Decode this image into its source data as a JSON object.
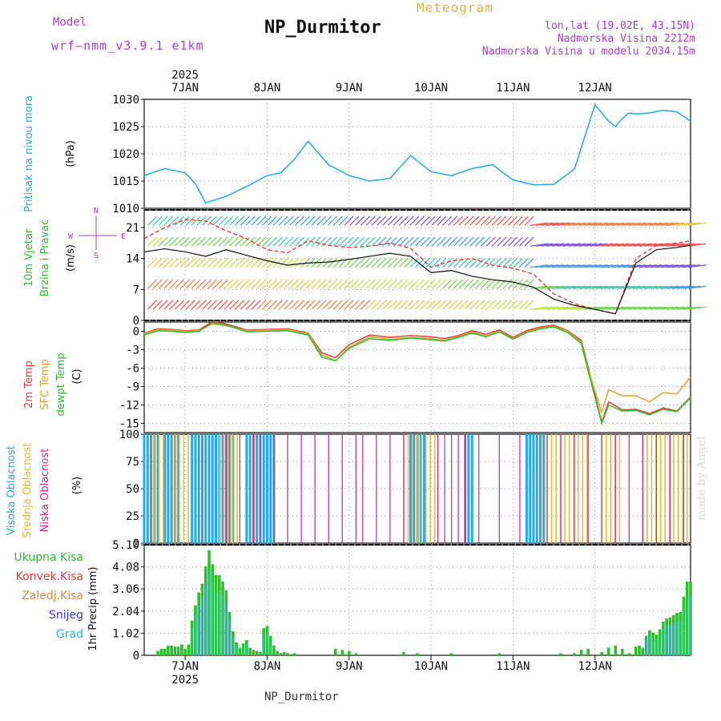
{
  "header": {
    "model_label": "Model",
    "model_version": "wrf—nmm_v3.9.1  e1km",
    "meteogram_label": "Meteogram",
    "station": "NP_Durmitor",
    "lonlat": "lon,lat (19.02E, 43.15N)",
    "elevation": "Nadmorska Visina 2212m",
    "model_elevation": "Nadmorska Visina u modelu 2034.15m"
  },
  "footer": {
    "station": "NP_Durmitor"
  },
  "watermark": "made by Angel",
  "colors": {
    "pressure": "#28a8e8",
    "temp2m": "#e83c3c",
    "sfc_temp": "#e8a030",
    "dewpoint": "#2cc02c",
    "wind_speed": "#111111",
    "cloud_high": "#28a8e8",
    "cloud_mid": "#e8b830",
    "cloud_low": "#c82890",
    "precip_total": "#2cc02c",
    "precip_conv": "#e83c3c",
    "precip_frz": "#e8843c",
    "precip_snow": "#3c3ce8",
    "precip_hail": "#28b8c8",
    "axis": "#111111",
    "grid": "#9a9a9a"
  },
  "chart_data": [
    {
      "type": "line",
      "id": "pressure",
      "ylabel": [
        "Pritisak na nivou mora",
        "(hPa)"
      ],
      "ylim": [
        1010,
        1030
      ],
      "yticks": [
        1010,
        1015,
        1020,
        1025,
        1030
      ],
      "x_hours": [
        0,
        6,
        12,
        15,
        18,
        24,
        30,
        36,
        40,
        44,
        48,
        54,
        60,
        66,
        72,
        78,
        84,
        90,
        96,
        102,
        108,
        114,
        120,
        126,
        132,
        136,
        138,
        140,
        142,
        144,
        148,
        152,
        156,
        160
      ],
      "series": [
        {
          "values": [
            1016,
            1017.3,
            1016.5,
            1014.5,
            1011,
            1012.2,
            1014,
            1016,
            1016.5,
            1019,
            1022.3,
            1018,
            1016,
            1015,
            1015.5,
            1019.7,
            1016.7,
            1016,
            1017.3,
            1018,
            1015.2,
            1014.3,
            1014.4,
            1017.2,
            1029,
            1026,
            1025,
            1026.5,
            1027.5,
            1027.3,
            1027.5,
            1028,
            1027.7,
            1026
          ]
        }
      ],
      "grid": true
    },
    {
      "type": "line",
      "id": "wind",
      "ylabel": [
        "10m Vjetar",
        "Brzina i Pravac",
        "(m/s)"
      ],
      "compass": [
        "N",
        "S",
        "W",
        "E"
      ],
      "ylim": [
        0,
        25
      ],
      "yticks": [
        0,
        7,
        14,
        21
      ],
      "x_hours": [
        0,
        6,
        12,
        18,
        24,
        30,
        36,
        42,
        48,
        54,
        60,
        66,
        72,
        78,
        84,
        90,
        96,
        102,
        108,
        114,
        120,
        126,
        132,
        138,
        144,
        150,
        156,
        160
      ],
      "series": [
        {
          "name": "speed",
          "values": [
            15.5,
            16.2,
            15.5,
            14.5,
            16,
            14.7,
            13.5,
            12.5,
            13,
            13.2,
            13.8,
            14.5,
            15.2,
            14.5,
            10.8,
            11.3,
            10,
            9.2,
            8.7,
            7.5,
            4.8,
            3.4,
            2.5,
            1.5,
            13,
            16,
            16.5,
            17
          ]
        },
        {
          "name": "gust",
          "values": [
            18.5,
            21,
            22.8,
            22.5,
            20.3,
            18.5,
            16,
            15.3,
            18,
            17,
            16.5,
            16.8,
            17.5,
            16.3,
            12,
            13.5,
            14,
            12.5,
            11.8,
            10.5,
            6,
            3.8,
            2.5,
            1.5,
            14,
            17,
            17.5,
            18
          ]
        }
      ],
      "grid": true
    },
    {
      "type": "line",
      "id": "temperature",
      "ylabel": [
        "2m Temp",
        "SFC Temp",
        "dewpt Temp",
        "(C)"
      ],
      "ylim": [
        -16.5,
        1.5
      ],
      "yticks": [
        -15,
        -12,
        -9,
        -6,
        -3,
        0
      ],
      "x_hours": [
        0,
        4,
        8,
        12,
        16,
        20,
        24,
        30,
        36,
        42,
        48,
        52,
        56,
        60,
        66,
        72,
        78,
        84,
        88,
        92,
        96,
        100,
        104,
        108,
        112,
        116,
        120,
        124,
        128,
        130,
        134,
        136,
        140,
        144,
        148,
        152,
        156,
        160
      ],
      "series": [
        {
          "name": "2m Temp",
          "values": [
            -0.3,
            0.4,
            0.3,
            0.1,
            0.2,
            1.6,
            1.2,
            0.2,
            0.3,
            0.4,
            -0.3,
            -3.5,
            -4.3,
            -2.2,
            -0.6,
            -1,
            -0.7,
            -0.9,
            -1.2,
            -0.7,
            0.1,
            -0.5,
            0.2,
            -1,
            0.1,
            0.7,
            1,
            0.1,
            -1.5,
            -5.8,
            -14.8,
            -11.5,
            -12.8,
            -12.7,
            -13.4,
            -12.5,
            -13,
            -10.7
          ]
        },
        {
          "name": "SFC Temp",
          "values": [
            -0.4,
            0.3,
            0.2,
            0,
            0.1,
            1.2,
            0.9,
            0.1,
            0.2,
            0.3,
            -0.4,
            -3.8,
            -4.8,
            -2.6,
            -0.9,
            -1.3,
            -1,
            -1.2,
            -1.5,
            -0.9,
            -0.1,
            -0.8,
            0,
            -1.2,
            -0.1,
            0.5,
            0.8,
            0,
            -1.8,
            -6.2,
            -13.2,
            -9.5,
            -10.5,
            -10.5,
            -11.5,
            -10,
            -10.2,
            -7.5
          ]
        },
        {
          "name": "dewpt Temp",
          "values": [
            -0.6,
            0.1,
            0,
            -0.2,
            0,
            1.4,
            1,
            -0.1,
            0,
            0.1,
            -0.6,
            -4.2,
            -4.8,
            -2.8,
            -1.2,
            -1.5,
            -1.1,
            -1.4,
            -1.6,
            -1,
            -0.3,
            -0.9,
            -0.1,
            -1.3,
            -0.2,
            0.4,
            0.7,
            -0.2,
            -2,
            -6.5,
            -15,
            -12,
            -13,
            -12.9,
            -13.6,
            -12.7,
            -13.1,
            -10.8
          ]
        }
      ],
      "grid": true
    },
    {
      "type": "bar",
      "id": "cloud",
      "ylabel": [
        "Visoka Oblacnost",
        "Srednja Oblacnost",
        "Niska Oblacnost",
        "(%)"
      ],
      "ylim": [
        0,
        100
      ],
      "yticks": [
        0,
        25,
        50,
        75,
        100
      ],
      "series": [
        {
          "name": "Visoka Oblacnost",
          "ranges": [
            [
              0,
              4
            ],
            [
              6,
              10
            ],
            [
              14,
              26
            ],
            [
              30,
              38
            ],
            [
              78,
              82
            ],
            [
              94,
              96
            ],
            [
              112,
              117
            ]
          ],
          "value": 100
        },
        {
          "name": "Srednja Oblacnost",
          "ranges": [
            [
              3,
              6
            ],
            [
              9,
              13
            ],
            [
              22,
              28
            ],
            [
              76,
              86
            ],
            [
              118,
              130
            ],
            [
              134,
              140
            ],
            [
              146,
              160
            ]
          ],
          "value": 100
        },
        {
          "name": "Niska Oblacnost",
          "hours": [
            24,
            28,
            32,
            34,
            38,
            42,
            46,
            50,
            54,
            58,
            62,
            64,
            68,
            72,
            76,
            86,
            88,
            90,
            92,
            94,
            98,
            104,
            110,
            118,
            122,
            126,
            130,
            134,
            138,
            142,
            146,
            150,
            154,
            158
          ],
          "value": 100
        }
      ],
      "grid": true
    },
    {
      "type": "bar",
      "id": "precip",
      "ylabel": [
        "1hr Precip",
        "(mm)"
      ],
      "legend": [
        "Ukupna Kisa",
        "Konvek.Kisa",
        "Zaledj.Kisa",
        "Snijeg",
        "Grad"
      ],
      "ylim": [
        0,
        5.1
      ],
      "yticks": [
        0,
        1.02,
        2.04,
        3.06,
        4.08,
        5.1
      ],
      "x_hours": [
        4,
        5,
        6,
        7,
        8,
        9,
        10,
        11,
        12,
        13,
        14,
        15,
        16,
        17,
        18,
        19,
        20,
        21,
        22,
        23,
        24,
        25,
        26,
        27,
        28,
        29,
        30,
        31,
        32,
        33,
        34,
        35,
        36,
        37,
        38,
        39,
        40,
        41,
        42,
        43,
        44,
        56,
        58,
        60,
        62,
        76,
        80,
        90,
        104,
        122,
        126,
        128,
        130,
        134,
        136,
        138,
        140,
        142,
        144,
        145,
        146,
        147,
        148,
        149,
        150,
        151,
        152,
        153,
        154,
        155,
        156,
        157,
        158,
        159,
        160
      ],
      "values": [
        0.2,
        0.3,
        0.3,
        0.45,
        0.45,
        0.4,
        0.4,
        0.5,
        0.3,
        0.5,
        1.6,
        2.3,
        2.9,
        3.3,
        4.1,
        4.85,
        4.2,
        3.7,
        3.7,
        3.4,
        3.0,
        2.0,
        1.1,
        0.6,
        0.35,
        0.55,
        0.7,
        0.35,
        0.25,
        0.2,
        0.15,
        1.25,
        1.35,
        0.9,
        0.45,
        0.2,
        0.1,
        0.15,
        0.1,
        0.05,
        0.1,
        0.3,
        0.25,
        0.2,
        0.1,
        0.15,
        0.1,
        0.1,
        0.1,
        0.1,
        0.1,
        0.25,
        0.3,
        0.15,
        0.35,
        0.45,
        0.3,
        0.1,
        0.4,
        0.45,
        0.35,
        0.9,
        1.15,
        1.05,
        0.95,
        1.2,
        1.55,
        1.7,
        1.75,
        1.85,
        1.95,
        2.0,
        2.7,
        3.4,
        3.4
      ],
      "grid": true
    }
  ],
  "xaxis": {
    "year": "2025",
    "dates": [
      "7JAN",
      "8JAN",
      "9JAN",
      "10JAN",
      "11JAN",
      "12JAN"
    ],
    "date_hours": [
      12,
      36,
      60,
      84,
      108,
      132
    ],
    "range_hours": [
      0,
      160
    ]
  }
}
